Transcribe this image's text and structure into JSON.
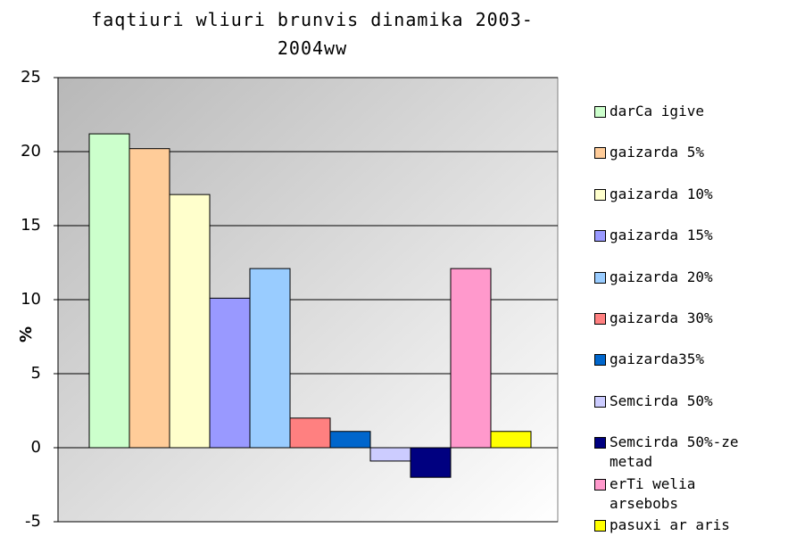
{
  "chart_data": {
    "type": "bar",
    "title": "faqtiuri wliuri brunvis dinamika 2003-2004ww",
    "y_label": "%",
    "ylim": [
      -5,
      25
    ],
    "yticks": [
      -5,
      0,
      5,
      10,
      15,
      20,
      25
    ],
    "grid": true,
    "legend": "right",
    "series": [
      {
        "name": "darCa igive",
        "color": "#ccffcc",
        "values": [
          21.2
        ]
      },
      {
        "name": "gaizarda 5%",
        "color": "#ffcc99",
        "values": [
          20.2
        ]
      },
      {
        "name": "gaizarda 10%",
        "color": "#ffffcc",
        "values": [
          17.1
        ]
      },
      {
        "name": "gaizarda 15%",
        "color": "#9999ff",
        "values": [
          10.1
        ]
      },
      {
        "name": "gaizarda 20%",
        "color": "#99ccff",
        "values": [
          12.1
        ]
      },
      {
        "name": "gaizarda 30%",
        "color": "#ff8080",
        "values": [
          2
        ]
      },
      {
        "name": "gaizarda35%",
        "color": "#0066cc",
        "values": [
          1.1
        ]
      },
      {
        "name": "Semcirda 50%",
        "color": "#ccccff",
        "values": [
          -0.9
        ]
      },
      {
        "name": "Semcirda 50%-ze metad",
        "color": "#000080",
        "values": [
          -2
        ]
      },
      {
        "name": "erTi welia arsebobs",
        "color": "#ff99cc",
        "values": [
          12.1
        ]
      },
      {
        "name": "pasuxi ar aris",
        "color": "#ffff00",
        "values": [
          1.1
        ]
      }
    ]
  }
}
